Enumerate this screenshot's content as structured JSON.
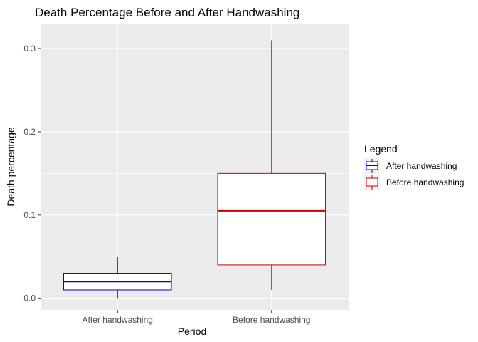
{
  "chart_data": {
    "type": "boxplot",
    "title": "Death Percentage Before and After Handwashing",
    "xlabel": "Period",
    "ylabel": "Death percentage",
    "categories": [
      "After handwashing",
      "Before handwashing"
    ],
    "ylim": [
      -0.014,
      0.33
    ],
    "yticks": [
      0.0,
      0.1,
      0.2,
      0.3
    ],
    "ytick_labels": [
      "0.0",
      "0.1",
      "0.2",
      "0.3"
    ],
    "grid": true,
    "legend": {
      "title": "Legend",
      "placement": "right",
      "entries": [
        "After handwashing",
        "Before handwashing"
      ]
    },
    "series": [
      {
        "name": "After handwashing",
        "color": "#0000cc",
        "min": 0.0,
        "q1": 0.01,
        "median": 0.02,
        "q3": 0.03,
        "max": 0.05
      },
      {
        "name": "Before handwashing",
        "color": "#cc0000",
        "min": 0.01,
        "q1": 0.04,
        "median": 0.105,
        "q3": 0.15,
        "max": 0.31
      }
    ],
    "colors": {
      "panel_bg": "#ebebeb",
      "grid": "#ffffff"
    }
  }
}
